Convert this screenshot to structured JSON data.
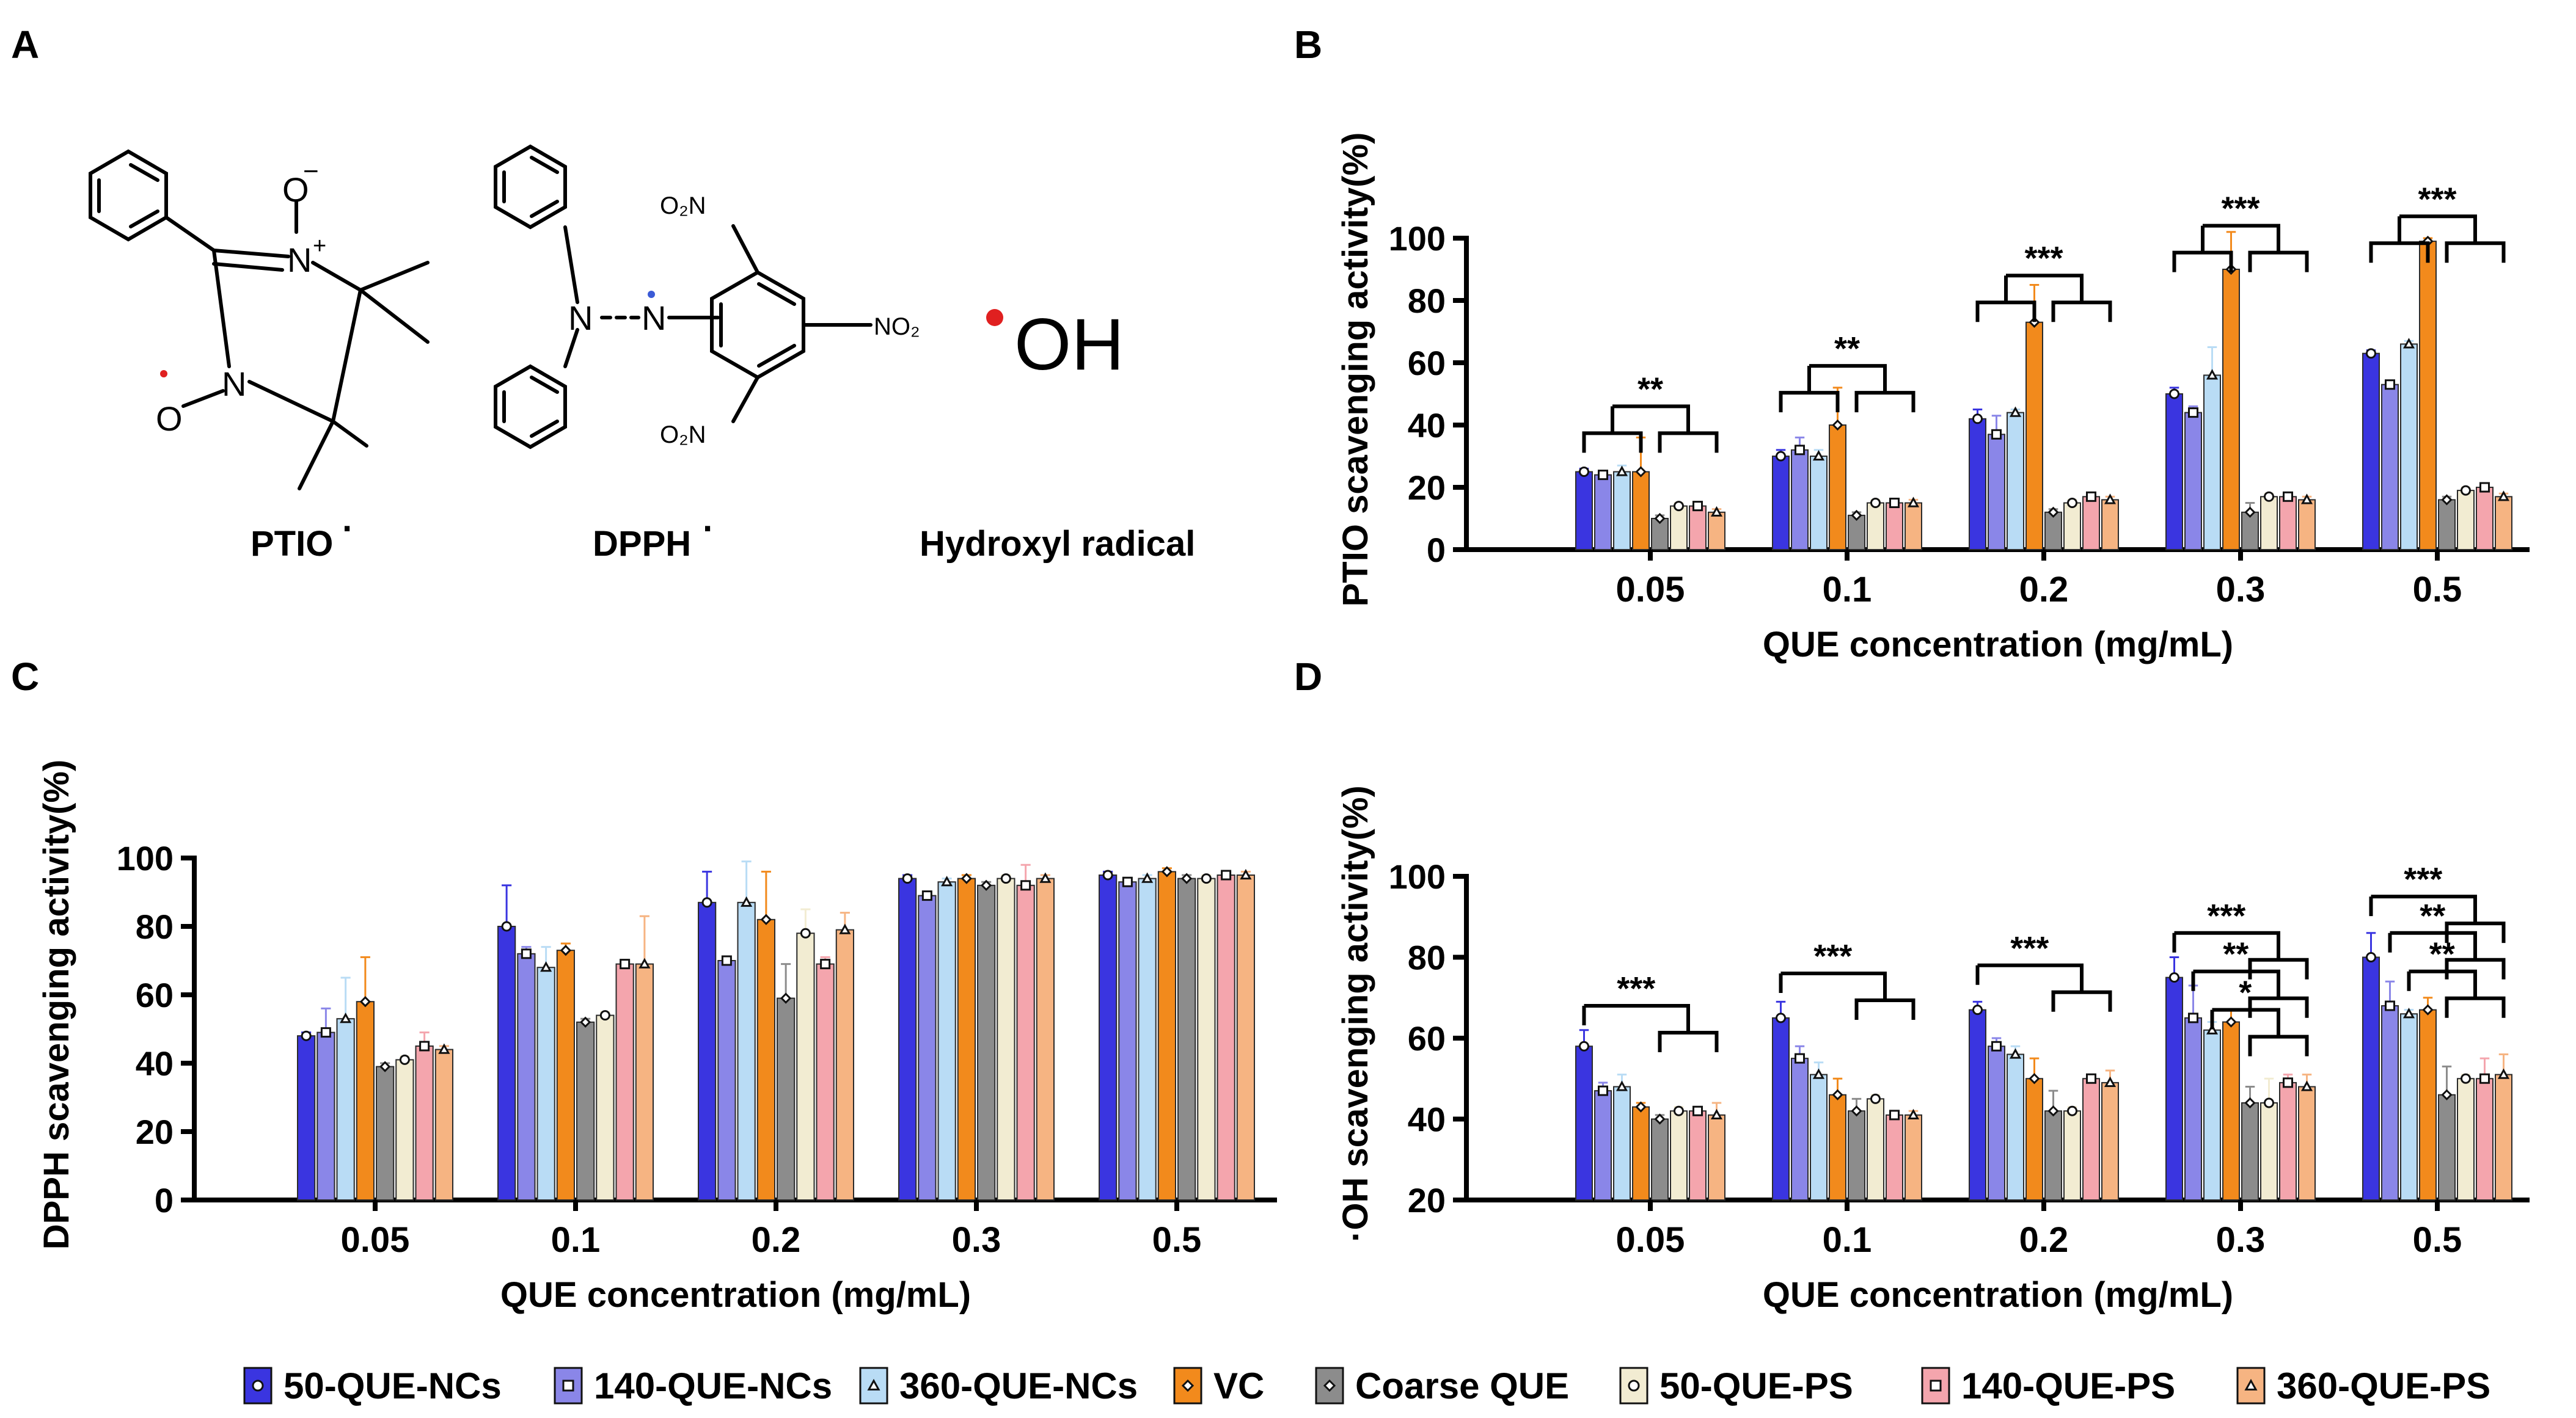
{
  "panels": {
    "a": {
      "letter": "A",
      "labels": {
        "ptio": "PTIO",
        "dpph": "DPPH",
        "hydroxyl": "Hydroxyl radical",
        "oh": "OH",
        "o_minus": "O",
        "minus": "−",
        "plus": "+",
        "n": "N",
        "o": "O",
        "o2n": "O₂N",
        "no2": "NO₂",
        "dot": "·"
      }
    },
    "b": {
      "letter": "B"
    },
    "c": {
      "letter": "C"
    },
    "d": {
      "letter": "D"
    }
  },
  "legend": [
    {
      "name": "50-QUE-NCs",
      "color": "#3a35e0",
      "marker": "circle"
    },
    {
      "name": "140-QUE-NCs",
      "color": "#8a86e8",
      "marker": "square"
    },
    {
      "name": "360-QUE-NCs",
      "color": "#b9dcf5",
      "marker": "triangle"
    },
    {
      "name": "VC",
      "color": "#f28a1c",
      "marker": "diamond"
    },
    {
      "name": "Coarse QUE",
      "color": "#8c8c8c",
      "marker": "diamond"
    },
    {
      "name": "50-QUE-PS",
      "color": "#f2ecd2",
      "marker": "circle"
    },
    {
      "name": "140-QUE-PS",
      "color": "#f4a5ad",
      "marker": "square"
    },
    {
      "name": "360-QUE-PS",
      "color": "#f6b482",
      "marker": "triangle"
    }
  ],
  "chart_data": [
    {
      "panel": "B",
      "type": "bar",
      "xlabel": "QUE concentration (mg/mL)",
      "ylabel": "PTIO scavenging activity(%)",
      "ylim": [
        0,
        100
      ],
      "yticks": [
        0,
        20,
        40,
        60,
        80,
        100
      ],
      "categories": [
        "0.05",
        "0.1",
        "0.2",
        "0.3",
        "0.5"
      ],
      "series": [
        {
          "name": "50-QUE-NCs",
          "values": [
            25,
            30,
            42,
            50,
            63
          ],
          "errors": [
            1,
            2,
            3,
            2,
            1
          ]
        },
        {
          "name": "140-QUE-NCs",
          "values": [
            24,
            32,
            37,
            44,
            53
          ],
          "errors": [
            1,
            4,
            6,
            2,
            1
          ]
        },
        {
          "name": "360-QUE-NCs",
          "values": [
            25,
            30,
            44,
            56,
            66
          ],
          "errors": [
            2,
            2,
            1,
            9,
            1
          ]
        },
        {
          "name": "VC",
          "values": [
            25,
            40,
            73,
            90,
            99
          ],
          "errors": [
            11,
            12,
            12,
            12,
            1
          ]
        },
        {
          "name": "Coarse QUE",
          "values": [
            10,
            11,
            12,
            12,
            16
          ],
          "errors": [
            1,
            1,
            1,
            3,
            1
          ]
        },
        {
          "name": "50-QUE-PS",
          "values": [
            14,
            15,
            15,
            17,
            19
          ],
          "errors": [
            1,
            1,
            1,
            1,
            1
          ]
        },
        {
          "name": "140-QUE-PS",
          "values": [
            14,
            15,
            17,
            17,
            20
          ],
          "errors": [
            1,
            1,
            1,
            1,
            1
          ]
        },
        {
          "name": "360-QUE-PS",
          "values": [
            12,
            15,
            16,
            16,
            17
          ],
          "errors": [
            1,
            1,
            1,
            1,
            1
          ]
        }
      ],
      "significance": [
        {
          "category": "0.05",
          "label": "**",
          "y": 46,
          "left": [
            0,
            3
          ],
          "right": [
            4,
            7
          ]
        },
        {
          "category": "0.1",
          "label": "**",
          "y": 59,
          "left": [
            0,
            3
          ],
          "right": [
            4,
            7
          ]
        },
        {
          "category": "0.2",
          "label": "***",
          "y": 88,
          "left": [
            0,
            3
          ],
          "right": [
            4,
            7
          ]
        },
        {
          "category": "0.3",
          "label": "***",
          "y": 104,
          "left": [
            0,
            3
          ],
          "right": [
            4,
            7
          ]
        },
        {
          "category": "0.5",
          "label": "***",
          "y": 107,
          "left": [
            0,
            3
          ],
          "right": [
            4,
            7
          ]
        }
      ]
    },
    {
      "panel": "C",
      "type": "bar",
      "xlabel": "QUE concentration (mg/mL)",
      "ylabel": "DPPH scavenging activity(%)",
      "ylim": [
        0,
        100
      ],
      "yticks": [
        0,
        20,
        40,
        60,
        80,
        100
      ],
      "categories": [
        "0.05",
        "0.1",
        "0.2",
        "0.3",
        "0.5"
      ],
      "series": [
        {
          "name": "50-QUE-NCs",
          "values": [
            48,
            80,
            87,
            94,
            95
          ],
          "errors": [
            1,
            12,
            9,
            1,
            1
          ]
        },
        {
          "name": "140-QUE-NCs",
          "values": [
            49,
            72,
            70,
            89,
            93
          ],
          "errors": [
            7,
            2,
            1,
            1,
            1
          ]
        },
        {
          "name": "360-QUE-NCs",
          "values": [
            53,
            68,
            87,
            93,
            94
          ],
          "errors": [
            12,
            6,
            12,
            1,
            1
          ]
        },
        {
          "name": "VC",
          "values": [
            58,
            73,
            82,
            94,
            96
          ],
          "errors": [
            13,
            2,
            14,
            1,
            1
          ]
        },
        {
          "name": "Coarse QUE",
          "values": [
            39,
            52,
            59,
            92,
            94
          ],
          "errors": [
            1,
            1,
            10,
            1,
            1
          ]
        },
        {
          "name": "50-QUE-PS",
          "values": [
            41,
            54,
            78,
            94,
            94
          ],
          "errors": [
            1,
            1,
            7,
            1,
            1
          ]
        },
        {
          "name": "140-QUE-PS",
          "values": [
            45,
            69,
            69,
            92,
            95
          ],
          "errors": [
            4,
            1,
            2,
            6,
            1
          ]
        },
        {
          "name": "360-QUE-PS",
          "values": [
            44,
            69,
            79,
            94,
            95
          ],
          "errors": [
            1,
            14,
            5,
            1,
            1
          ]
        }
      ]
    },
    {
      "panel": "D",
      "type": "bar",
      "xlabel": "QUE concentration (mg/mL)",
      "ylabel": "·OH scavenging activity(%)",
      "ylim": [
        20,
        100
      ],
      "yticks": [
        20,
        40,
        60,
        80,
        100
      ],
      "categories": [
        "0.05",
        "0.1",
        "0.2",
        "0.3",
        "0.5"
      ],
      "series": [
        {
          "name": "50-QUE-NCs",
          "values": [
            58,
            65,
            67,
            75,
            80
          ],
          "errors": [
            4,
            4,
            2,
            5,
            6
          ]
        },
        {
          "name": "140-QUE-NCs",
          "values": [
            47,
            55,
            58,
            65,
            68
          ],
          "errors": [
            2,
            3,
            2,
            8,
            6
          ]
        },
        {
          "name": "360-QUE-NCs",
          "values": [
            48,
            51,
            56,
            62,
            66
          ],
          "errors": [
            3,
            3,
            2,
            2,
            1
          ]
        },
        {
          "name": "VC",
          "values": [
            43,
            46,
            50,
            64,
            67
          ],
          "errors": [
            1,
            4,
            5,
            3,
            3
          ]
        },
        {
          "name": "Coarse QUE",
          "values": [
            40,
            42,
            42,
            44,
            46
          ],
          "errors": [
            1,
            3,
            5,
            4,
            7
          ]
        },
        {
          "name": "50-QUE-PS",
          "values": [
            42,
            45,
            42,
            44,
            50
          ],
          "errors": [
            1,
            1,
            1,
            6,
            1
          ]
        },
        {
          "name": "140-QUE-PS",
          "values": [
            42,
            41,
            50,
            49,
            50
          ],
          "errors": [
            1,
            1,
            1,
            2,
            5
          ]
        },
        {
          "name": "360-QUE-PS",
          "values": [
            41,
            41,
            49,
            48,
            51
          ],
          "errors": [
            3,
            1,
            3,
            3,
            5
          ]
        }
      ],
      "significance": [
        {
          "category": "0.05",
          "label": "***",
          "y": 68,
          "left": [
            0,
            0
          ],
          "right": [
            4,
            7
          ]
        },
        {
          "category": "0.1",
          "label": "***",
          "y": 76,
          "left": [
            0,
            0
          ],
          "right": [
            4,
            7
          ]
        },
        {
          "category": "0.2",
          "label": "***",
          "y": 78,
          "left": [
            0,
            0
          ],
          "right": [
            4,
            7
          ]
        },
        {
          "category": "0.3",
          "label": "***",
          "y": 86,
          "left": [
            0,
            0
          ],
          "right": [
            4,
            7
          ]
        },
        {
          "category": "0.3",
          "label": "**",
          "y": 76.5,
          "left": [
            1,
            1
          ],
          "right": [
            4,
            7
          ]
        },
        {
          "category": "0.3",
          "label": "*",
          "y": 67,
          "left": [
            2,
            2
          ],
          "right": [
            4,
            7
          ]
        },
        {
          "category": "0.5",
          "label": "***",
          "y": 95,
          "left": [
            0,
            0
          ],
          "right": [
            4,
            7
          ]
        },
        {
          "category": "0.5",
          "label": "**",
          "y": 86,
          "left": [
            1,
            1
          ],
          "right": [
            4,
            7
          ]
        },
        {
          "category": "0.5",
          "label": "**",
          "y": 76.5,
          "left": [
            2,
            2
          ],
          "right": [
            4,
            7
          ]
        }
      ]
    }
  ]
}
